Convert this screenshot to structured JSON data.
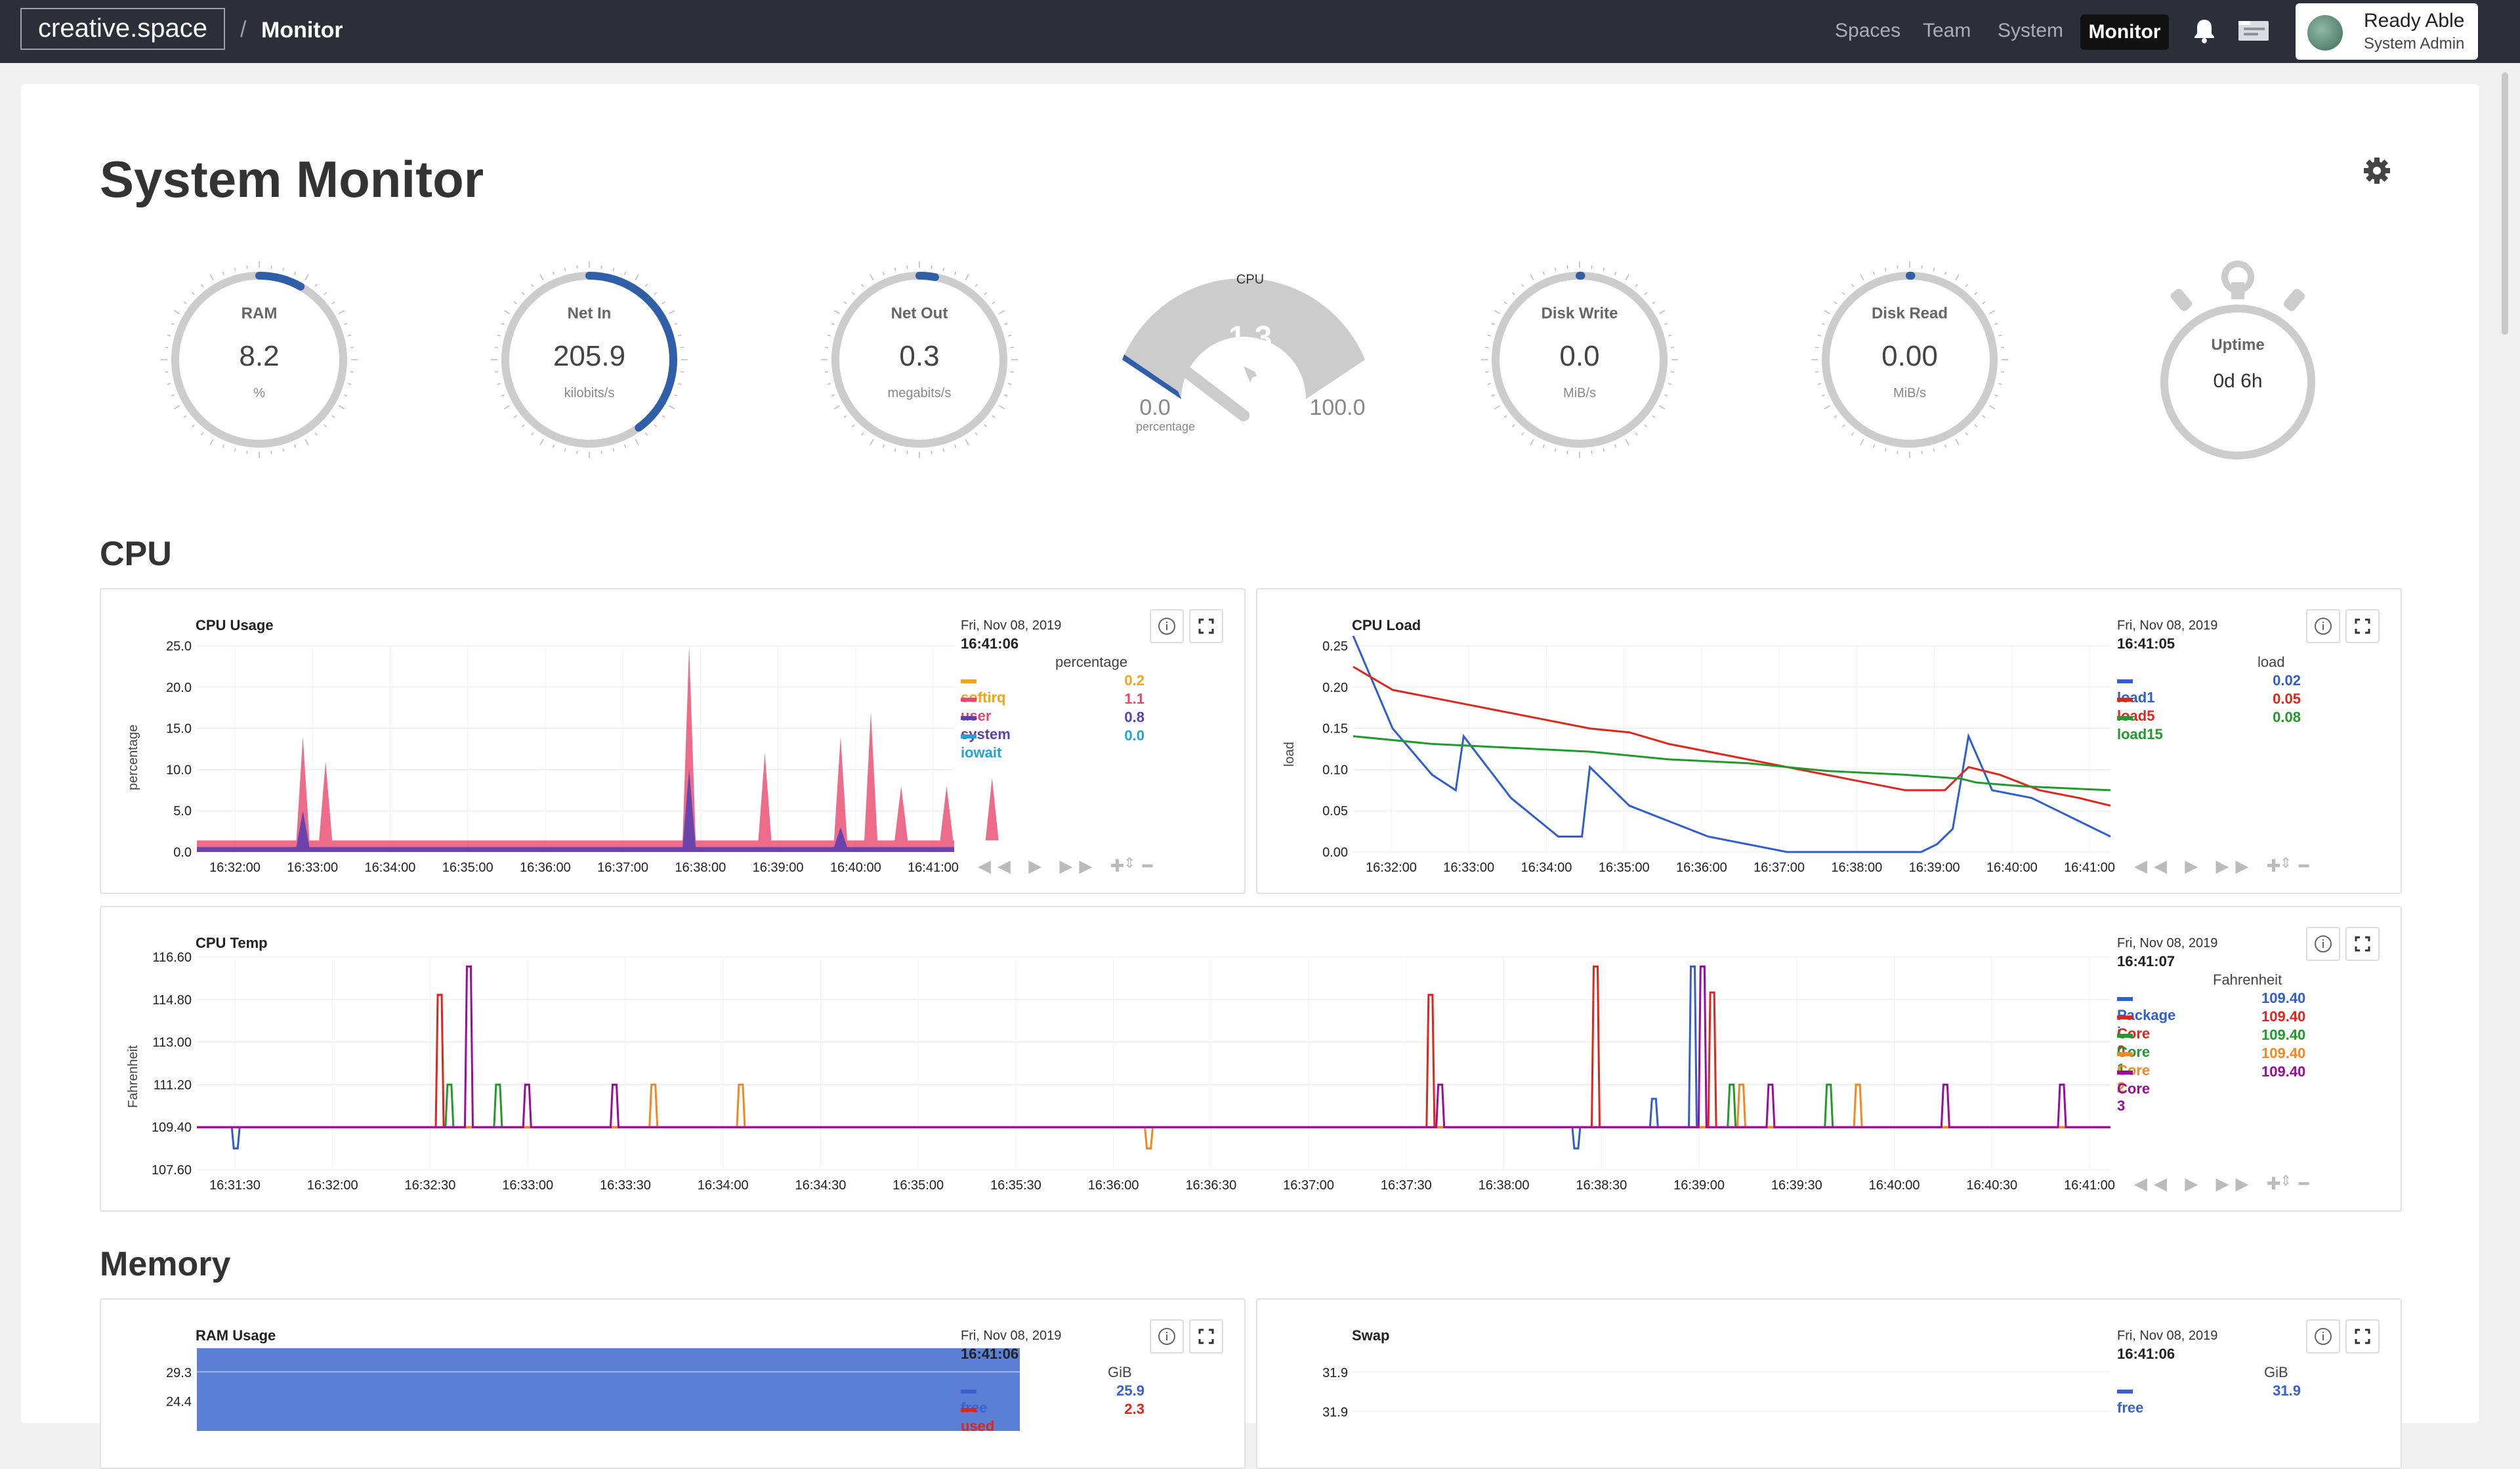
{
  "topbar": {
    "brand": "creative.space",
    "sep": "/",
    "crumb": "Monitor",
    "nav": [
      "Spaces",
      "Team",
      "System"
    ],
    "nav_active": "Monitor",
    "user_name": "Ready Able",
    "user_role": "System Admin"
  },
  "page": {
    "title": "System Monitor"
  },
  "gauges": [
    {
      "title": "RAM",
      "value": "8.2",
      "unit": "%",
      "fill": 0.082
    },
    {
      "title": "Net In",
      "value": "205.9",
      "unit": "kilobits/s",
      "fill": 0.4
    },
    {
      "title": "Net Out",
      "value": "0.3",
      "unit": "megabits/s",
      "fill": 0.03
    },
    {
      "title": "Disk Write",
      "value": "0.0",
      "unit": "MiB/s",
      "fill": 0
    },
    {
      "title": "Disk Read",
      "value": "0.00",
      "unit": "MiB/s",
      "fill": 0
    }
  ],
  "cpu_gauge": {
    "title": "CPU",
    "value": "1.3",
    "min": "0.0",
    "max": "100.0",
    "unit": "percentage",
    "fill": 0.013
  },
  "uptime": {
    "title": "Uptime",
    "value": "0d 6h"
  },
  "sections": {
    "cpu": "CPU",
    "memory": "Memory"
  },
  "colors": {
    "softirq": "#f7a21b",
    "user": "#e8476d",
    "system": "#5b3fb0",
    "iowait": "#21a3d6",
    "load1": "#2f5fcf",
    "load5": "#e0251b",
    "load15": "#1f9a2b",
    "core2": "#f5871f",
    "core3": "#9c0b9c",
    "free": "#3a62cc",
    "used": "#e0251b"
  },
  "panels": {
    "cpu_usage": {
      "title": "CPU Usage",
      "date": "Fri, Nov 08, 2019",
      "time": "16:41:06",
      "unit": "percentage",
      "ylabel": "percentage",
      "legend": [
        {
          "name": "softirq",
          "value": "0.2",
          "color": "#f7a21b"
        },
        {
          "name": "user",
          "value": "1.1",
          "color": "#e8476d"
        },
        {
          "name": "system",
          "value": "0.8",
          "color": "#5b3fb0"
        },
        {
          "name": "iowait",
          "value": "0.0",
          "color": "#21a3d6"
        }
      ]
    },
    "cpu_load": {
      "title": "CPU Load",
      "date": "Fri, Nov 08, 2019",
      "time": "16:41:05",
      "unit": "load",
      "ylabel": "load",
      "legend": [
        {
          "name": "load1",
          "value": "0.02",
          "color": "#2f5fcf"
        },
        {
          "name": "load5",
          "value": "0.05",
          "color": "#e0251b"
        },
        {
          "name": "load15",
          "value": "0.08",
          "color": "#1f9a2b"
        }
      ]
    },
    "cpu_temp": {
      "title": "CPU Temp",
      "date": "Fri, Nov 08, 2019",
      "time": "16:41:07",
      "unit": "Fahrenheit",
      "ylabel": "Fahrenheit",
      "legend": [
        {
          "name": "Package i...",
          "value": "109.40",
          "color": "#2f5fcf"
        },
        {
          "name": "Core 0",
          "value": "109.40",
          "color": "#e0251b"
        },
        {
          "name": "Core 1",
          "value": "109.40",
          "color": "#1f9a2b"
        },
        {
          "name": "Core 2",
          "value": "109.40",
          "color": "#f5871f"
        },
        {
          "name": "Core 3",
          "value": "109.40",
          "color": "#9c0b9c"
        }
      ]
    },
    "ram_usage": {
      "title": "RAM Usage",
      "date": "Fri, Nov 08, 2019",
      "time": "16:41:06",
      "unit": "GiB",
      "legend": [
        {
          "name": "free",
          "value": "25.9",
          "color": "#3a62cc"
        },
        {
          "name": "used",
          "value": "2.3",
          "color": "#e0251b"
        }
      ]
    },
    "swap": {
      "title": "Swap",
      "date": "Fri, Nov 08, 2019",
      "time": "16:41:06",
      "unit": "GiB",
      "legend": [
        {
          "name": "free",
          "value": "31.9",
          "color": "#3a62cc"
        }
      ]
    }
  },
  "chart_data": [
    {
      "type": "area",
      "title": "CPU Usage",
      "ylabel": "percentage",
      "ylim": [
        0,
        25
      ],
      "yticks": [
        "25.0",
        "20.0",
        "15.0",
        "10.0",
        "5.0",
        "0.0"
      ],
      "xticks": [
        "16:32:00",
        "16:33:00",
        "16:34:00",
        "16:35:00",
        "16:36:00",
        "16:37:00",
        "16:38:00",
        "16:39:00",
        "16:40:00",
        "16:41:00"
      ],
      "series": [
        {
          "name": "user",
          "spikes": [
            [
              1.4,
              14
            ],
            [
              1.7,
              11
            ],
            [
              6.5,
              25
            ],
            [
              7.5,
              12
            ],
            [
              8.5,
              14
            ],
            [
              8.9,
              17
            ],
            [
              9.3,
              8
            ],
            [
              9.9,
              8
            ],
            [
              10.5,
              9
            ]
          ]
        },
        {
          "name": "system",
          "spikes": [
            [
              1.4,
              5
            ],
            [
              6.5,
              10
            ],
            [
              8.5,
              3
            ]
          ]
        }
      ]
    },
    {
      "type": "line",
      "title": "CPU Load",
      "ylabel": "load",
      "ylim": [
        0,
        0.28
      ],
      "yticks": [
        "0.25",
        "0.20",
        "0.15",
        "0.10",
        "0.05",
        "0.00"
      ],
      "xticks": [
        "16:32:00",
        "16:33:00",
        "16:34:00",
        "16:35:00",
        "16:36:00",
        "16:37:00",
        "16:38:00",
        "16:39:00",
        "16:40:00",
        "16:41:00"
      ],
      "series": [
        {
          "name": "load1",
          "points": [
            [
              0,
              0.28
            ],
            [
              0.5,
              0.16
            ],
            [
              1,
              0.1
            ],
            [
              1.3,
              0.08
            ],
            [
              1.4,
              0.15
            ],
            [
              2,
              0.07
            ],
            [
              2.6,
              0.02
            ],
            [
              2.9,
              0.02
            ],
            [
              3,
              0.11
            ],
            [
              3.5,
              0.06
            ],
            [
              4,
              0.04
            ],
            [
              4.5,
              0.02
            ],
            [
              5,
              0.01
            ],
            [
              5.5,
              0
            ],
            [
              7.2,
              0
            ],
            [
              7.4,
              0.01
            ],
            [
              7.6,
              0.03
            ],
            [
              7.8,
              0.15
            ],
            [
              8.1,
              0.08
            ],
            [
              8.6,
              0.07
            ],
            [
              9,
              0.05
            ],
            [
              9.4,
              0.03
            ],
            [
              9.6,
              0.02
            ]
          ]
        },
        {
          "name": "load5",
          "points": [
            [
              0,
              0.24
            ],
            [
              0.5,
              0.21
            ],
            [
              1,
              0.2
            ],
            [
              1.5,
              0.19
            ],
            [
              2,
              0.18
            ],
            [
              2.5,
              0.17
            ],
            [
              3,
              0.16
            ],
            [
              3.5,
              0.155
            ],
            [
              4,
              0.14
            ],
            [
              4.5,
              0.13
            ],
            [
              5,
              0.12
            ],
            [
              5.5,
              0.11
            ],
            [
              6,
              0.1
            ],
            [
              6.5,
              0.09
            ],
            [
              7,
              0.08
            ],
            [
              7.5,
              0.08
            ],
            [
              7.8,
              0.11
            ],
            [
              8.2,
              0.1
            ],
            [
              8.7,
              0.08
            ],
            [
              9.2,
              0.07
            ],
            [
              9.6,
              0.06
            ]
          ]
        },
        {
          "name": "load15",
          "points": [
            [
              0,
              0.15
            ],
            [
              1,
              0.14
            ],
            [
              2,
              0.135
            ],
            [
              3,
              0.13
            ],
            [
              4,
              0.12
            ],
            [
              5,
              0.115
            ],
            [
              6,
              0.105
            ],
            [
              7,
              0.1
            ],
            [
              7.7,
              0.095
            ],
            [
              7.9,
              0.09
            ],
            [
              8.5,
              0.085
            ],
            [
              9.6,
              0.08
            ]
          ]
        }
      ]
    },
    {
      "type": "line",
      "title": "CPU Temp",
      "ylabel": "Fahrenheit",
      "ylim": [
        107.6,
        116.6
      ],
      "yticks": [
        "116.60",
        "114.80",
        "113.00",
        "111.20",
        "109.40",
        "107.60"
      ],
      "xticks": [
        "16:31:30",
        "16:32:00",
        "16:32:30",
        "16:33:00",
        "16:33:30",
        "16:34:00",
        "16:34:30",
        "16:35:00",
        "16:35:30",
        "16:36:00",
        "16:36:30",
        "16:37:00",
        "16:37:30",
        "16:38:00",
        "16:38:30",
        "16:39:00",
        "16:39:30",
        "16:40:00",
        "16:40:30",
        "16:41:00"
      ],
      "baseline": 109.4,
      "series": [
        {
          "name": "Package i...",
          "spikes": [
            [
              0.4,
              108.5
            ],
            [
              14.2,
              108.5
            ],
            [
              15.0,
              110.6
            ],
            [
              15.4,
              116.2
            ]
          ]
        },
        {
          "name": "Core 0",
          "spikes": [
            [
              2.5,
              115.0
            ],
            [
              12.7,
              115.0
            ],
            [
              14.4,
              116.2
            ],
            [
              15.6,
              115.1
            ]
          ]
        },
        {
          "name": "Core 1",
          "spikes": [
            [
              2.6,
              111.2
            ],
            [
              3.1,
              111.2
            ],
            [
              15.8,
              111.2
            ],
            [
              16.8,
              111.2
            ]
          ]
        },
        {
          "name": "Core 2",
          "spikes": [
            [
              4.7,
              111.2
            ],
            [
              5.6,
              111.2
            ],
            [
              9.8,
              108.5
            ],
            [
              15.9,
              111.2
            ],
            [
              17.1,
              111.2
            ]
          ]
        },
        {
          "name": "Core 3",
          "spikes": [
            [
              2.8,
              116.2
            ],
            [
              3.4,
              111.2
            ],
            [
              4.3,
              111.2
            ],
            [
              12.8,
              111.2
            ],
            [
              15.5,
              116.2
            ],
            [
              16.2,
              111.2
            ],
            [
              18.0,
              111.2
            ],
            [
              19.2,
              111.2
            ]
          ]
        }
      ]
    },
    {
      "type": "bar",
      "title": "RAM Usage",
      "yticks": [
        "29.3",
        "24.4"
      ],
      "series": [
        {
          "name": "free",
          "value": 25.9
        },
        {
          "name": "used",
          "value": 2.3
        }
      ]
    },
    {
      "type": "line",
      "title": "Swap",
      "yticks": [
        "31.9",
        "31.9"
      ],
      "series": [
        {
          "name": "free",
          "value": 31.9
        }
      ]
    }
  ]
}
